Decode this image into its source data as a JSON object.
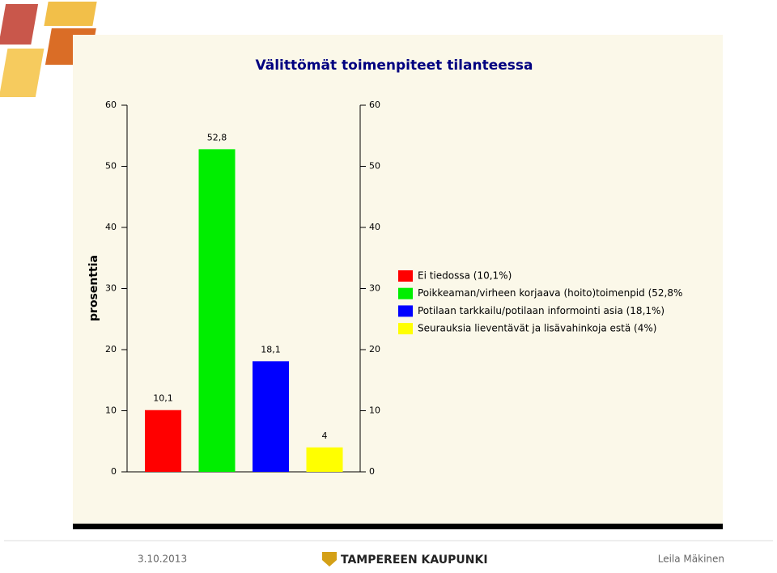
{
  "chart_data": {
    "type": "bar",
    "title": "Välittömät toimenpiteet tilanteessa",
    "y_label": "prosenttia",
    "categories": [
      null,
      null,
      null,
      null
    ],
    "values": [
      10.1,
      52.8,
      18.1,
      4
    ],
    "value_labels": [
      "10,1",
      "52,8",
      "18,1",
      "4"
    ],
    "colors": [
      "#ff0000",
      "#00ee00",
      "#0000ff",
      "#ffff00"
    ],
    "legend_labels": [
      "Ei tiedossa (10,1%)",
      "Poikkeaman/virheen korjaava (hoito)toimenpid (52,8%",
      "Potilaan tarkkailu/potilaan informointi asia (18,1%)",
      "Seurauksia lieventävät ja lisävahinkoja estä (4%)"
    ],
    "legend_position": "right",
    "ylim": [
      0,
      60
    ],
    "yticks": [
      0,
      10,
      20,
      30,
      40,
      50,
      60
    ],
    "y2lim": [
      0,
      60
    ],
    "y2ticks": [
      0,
      10,
      20,
      30,
      40,
      50,
      60
    ],
    "grid": false
  },
  "footer": {
    "date": "3.10.2013",
    "logo": "TAMPEREEN KAUPUNKI",
    "author": "Leila Mäkinen"
  }
}
